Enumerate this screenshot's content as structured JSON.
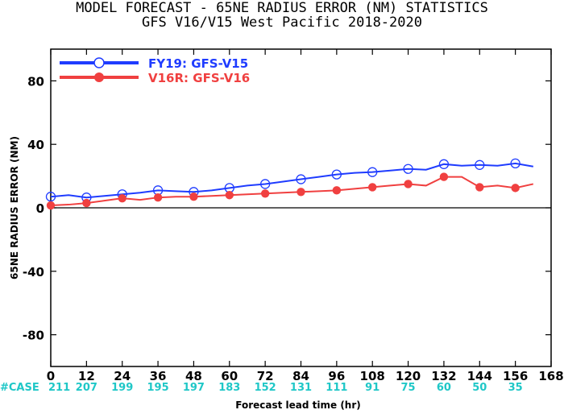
{
  "chart_data": {
    "type": "line",
    "title": "MODEL FORECAST - 65NE RADIUS ERROR (NM) STATISTICS",
    "subtitle": "GFS V16/V15 West Pacific 2018-2020",
    "xlabel": "Forecast lead time (hr)",
    "ylabel": "65NE RADIUS ERROR (NM)",
    "xlim": [
      0,
      168
    ],
    "ylim": [
      -100,
      100
    ],
    "x_ticks": [
      0,
      12,
      24,
      36,
      48,
      60,
      72,
      84,
      96,
      108,
      120,
      132,
      144,
      156,
      168
    ],
    "y_ticks": [
      -80,
      -40,
      0,
      40,
      80
    ],
    "x": [
      0,
      6,
      12,
      18,
      24,
      30,
      36,
      42,
      48,
      54,
      60,
      66,
      72,
      78,
      84,
      90,
      96,
      102,
      108,
      114,
      120,
      126,
      132,
      138,
      144,
      150,
      156,
      162
    ],
    "marker_every": 12,
    "series": [
      {
        "name": "FY19: GFS-V15",
        "color": "#1f3cff",
        "values": [
          7,
          8,
          6.5,
          7.5,
          8.5,
          9.5,
          11,
          10.5,
          10,
          11,
          12.5,
          14,
          15,
          16.5,
          18,
          19.5,
          21,
          22,
          22.5,
          23.5,
          24.5,
          24,
          27.5,
          26.5,
          27,
          26.5,
          28,
          26
        ]
      },
      {
        "name": "V16R: GFS-V16",
        "color": "#f04040",
        "values": [
          1.5,
          2,
          3,
          4.5,
          6,
          5,
          6.5,
          7,
          7,
          7.5,
          8,
          8.5,
          9,
          9.5,
          10,
          10.5,
          11,
          12,
          13,
          14,
          15,
          14,
          19.5,
          19.5,
          13,
          14,
          12.5,
          15
        ]
      }
    ],
    "case_label": "#CASE",
    "case_x": [
      0,
      12,
      24,
      36,
      48,
      60,
      72,
      84,
      96,
      108,
      120,
      132,
      144,
      156
    ],
    "case_counts": [
      "211",
      "207",
      "199",
      "195",
      "197",
      "183",
      "152",
      "131",
      "111",
      "91",
      "75",
      "60",
      "50",
      "35"
    ],
    "legend_position": "top-left",
    "grid": false,
    "zero_line": true
  }
}
